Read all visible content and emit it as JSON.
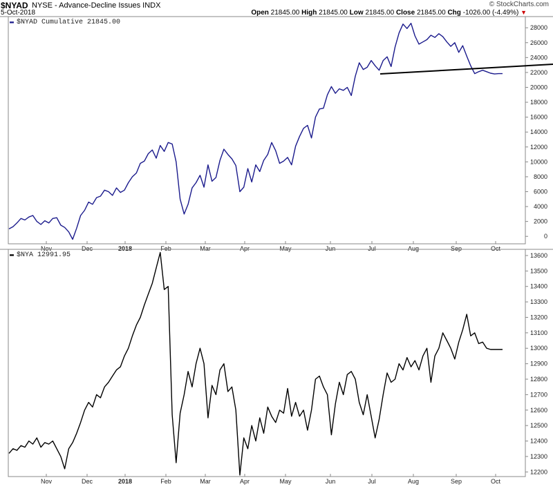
{
  "header": {
    "symbol": "$NYAD",
    "name": "NYSE - Advance-Decline Issues  INDX",
    "date": "5-Oct-2018",
    "copyright": "© StockCharts.com",
    "open_label": "Open",
    "open": "21845.00",
    "high_label": "High",
    "high": "21845.00",
    "low_label": "Low",
    "low": "21845.00",
    "close_label": "Close",
    "close": "21845.00",
    "chg_label": "Chg",
    "chg": "-1026.00 (-4.49%)",
    "chg_arrow": "▼"
  },
  "chart_data": [
    {
      "type": "line",
      "legend": "$NYAD Cumulative 21845.00",
      "color": "#1a1a8c",
      "ylim": [
        -1000,
        29500
      ],
      "yticks": [
        0,
        2000,
        4000,
        6000,
        8000,
        10000,
        12000,
        14000,
        16000,
        18000,
        20000,
        22000,
        24000,
        26000,
        28000
      ],
      "ytick_labels": [
        "0",
        "2000",
        "4000",
        "6000",
        "8000",
        "10000",
        "12000",
        "14000",
        "16000",
        "18000",
        "20000",
        "22000",
        "24000",
        "26000",
        "28000"
      ],
      "x": [
        0,
        2,
        4,
        6,
        8,
        10,
        12,
        14,
        16,
        18,
        20,
        22,
        24,
        26,
        28,
        30,
        32,
        34,
        36,
        38,
        40,
        42,
        44,
        46,
        48,
        50,
        52,
        54,
        56,
        58,
        60,
        62,
        64,
        66,
        68,
        70,
        72,
        74,
        76,
        78,
        80,
        82,
        84,
        86,
        88,
        90,
        92,
        94,
        96,
        98,
        100,
        102,
        104,
        106,
        108,
        110,
        112,
        114,
        116,
        118,
        120,
        122,
        124,
        126,
        128,
        130,
        132,
        134,
        136,
        138,
        140,
        142,
        144,
        146,
        148,
        150,
        152,
        154,
        156,
        158,
        160,
        162,
        164,
        166,
        168,
        170,
        172,
        174,
        176,
        178,
        180,
        182,
        184,
        186,
        188,
        190,
        192,
        194,
        196,
        198,
        200,
        202,
        204,
        206,
        208,
        210,
        212,
        214,
        216,
        218,
        220,
        222,
        224,
        226,
        228,
        230,
        232,
        234,
        236,
        238,
        240,
        242,
        244,
        246,
        248
      ],
      "values": [
        1000,
        1300,
        1800,
        2400,
        2200,
        2600,
        2800,
        2000,
        1600,
        2100,
        1800,
        2400,
        2500,
        1500,
        1200,
        600,
        -400,
        1100,
        2800,
        3500,
        4600,
        4300,
        5200,
        5400,
        6200,
        6000,
        5500,
        6500,
        5900,
        6200,
        7200,
        8000,
        8500,
        9800,
        10100,
        11100,
        11600,
        10500,
        12200,
        11400,
        12600,
        12400,
        10000,
        5000,
        3000,
        4300,
        6500,
        7200,
        8200,
        6600,
        9600,
        7400,
        7900,
        10200,
        11700,
        11000,
        10400,
        9500,
        6000,
        6600,
        9100,
        7300,
        9600,
        8700,
        10200,
        11000,
        12600,
        11500,
        9800,
        10100,
        10600,
        9600,
        12100,
        13400,
        14500,
        14900,
        13200,
        16000,
        17100,
        17200,
        19000,
        20100,
        19200,
        19800,
        19600,
        20000,
        18900,
        21500,
        23300,
        22400,
        22700,
        23600,
        22900,
        22300,
        23600,
        24100,
        22800,
        25400,
        27300,
        28500,
        27900,
        28600,
        26900,
        25800,
        26100,
        26400,
        27000,
        26700,
        27200,
        26800,
        26100,
        25500,
        26000,
        24700,
        25600,
        24200,
        22900,
        21845,
        22100,
        22300,
        22100,
        21900,
        21800,
        21845,
        21845
      ],
      "trendline": {
        "x_start": 178,
        "y_start": 21800,
        "x_end": 248,
        "y_end": 23100
      },
      "xtick_labels": [
        "Nov",
        "Dec",
        "2018",
        "Feb",
        "Mar",
        "Apr",
        "May",
        "Jun",
        "Jul",
        "Aug",
        "Sep",
        "Oct"
      ]
    },
    {
      "type": "line",
      "legend": "$NYA 12991.95",
      "color": "#000000",
      "ylim": [
        12170,
        13640
      ],
      "yticks": [
        12200,
        12300,
        12400,
        12500,
        12600,
        12700,
        12800,
        12900,
        13000,
        13100,
        13200,
        13300,
        13400,
        13500,
        13600
      ],
      "ytick_labels": [
        "12200",
        "12300",
        "12400",
        "12500",
        "12600",
        "12700",
        "12800",
        "12900",
        "13000",
        "13100",
        "13200",
        "13300",
        "13400",
        "13500",
        "13600"
      ],
      "values": [
        12320,
        12350,
        12340,
        12370,
        12360,
        12400,
        12380,
        12420,
        12360,
        12390,
        12380,
        12400,
        12350,
        12300,
        12220,
        12350,
        12390,
        12450,
        12520,
        12600,
        12650,
        12620,
        12700,
        12680,
        12750,
        12780,
        12820,
        12860,
        12880,
        12950,
        13000,
        13080,
        13150,
        13200,
        13280,
        13350,
        13420,
        13520,
        13620,
        13380,
        13400,
        12570,
        12260,
        12580,
        12700,
        12850,
        12750,
        12900,
        13000,
        12900,
        12550,
        12760,
        12700,
        12860,
        12900,
        12720,
        12750,
        12600,
        12180,
        12420,
        12350,
        12500,
        12400,
        12550,
        12450,
        12620,
        12560,
        12520,
        12600,
        12580,
        12740,
        12560,
        12650,
        12560,
        12600,
        12470,
        12600,
        12800,
        12820,
        12750,
        12700,
        12440,
        12640,
        12780,
        12700,
        12830,
        12850,
        12800,
        12650,
        12570,
        12700,
        12560,
        12420,
        12540,
        12700,
        12840,
        12780,
        12800,
        12900,
        12860,
        12940,
        12880,
        12920,
        12860,
        12950,
        13000,
        12780,
        12950,
        13000,
        13100,
        13050,
        13000,
        12930,
        13040,
        13120,
        13220,
        13080,
        13100,
        13030,
        13040,
        13000,
        12991.95,
        12991.95,
        12991.95,
        12991.95
      ],
      "xtick_labels": [
        "Nov",
        "Dec",
        "2018",
        "Feb",
        "Mar",
        "Apr",
        "May",
        "Jun",
        "Jul",
        "Aug",
        "Sep",
        "Oct"
      ]
    }
  ]
}
